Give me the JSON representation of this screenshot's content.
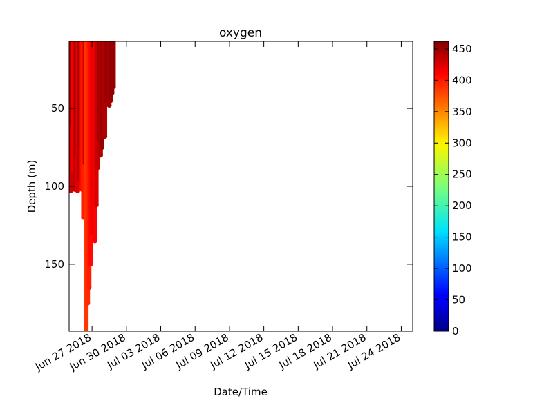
{
  "chart_data": {
    "type": "scatter",
    "title": "oxygen",
    "xlabel": "Date/Time",
    "ylabel": "Depth (m)",
    "x_range": [
      "2018-06-25",
      "2018-07-25"
    ],
    "y_range": [
      7,
      193
    ],
    "y_inverted": true,
    "x_ticks": [
      "Jun 27 2018",
      "Jun 30 2018",
      "Jul 03 2018",
      "Jul 06 2018",
      "Jul 09 2018",
      "Jul 12 2018",
      "Jul 15 2018",
      "Jul 18 2018",
      "Jul 21 2018",
      "Jul 24 2018"
    ],
    "x_tick_dates": [
      "2018-06-27",
      "2018-06-30",
      "2018-07-03",
      "2018-07-06",
      "2018-07-09",
      "2018-07-12",
      "2018-07-15",
      "2018-07-18",
      "2018-07-21",
      "2018-07-24"
    ],
    "y_ticks": [
      50,
      100,
      150
    ],
    "colorbar": {
      "colormap": "jet",
      "min": 0,
      "max": 462,
      "ticks": [
        0,
        50,
        100,
        150,
        200,
        250,
        300,
        350,
        400,
        450
      ]
    },
    "profiles": [
      {
        "date": "2018-06-25T00:00",
        "max_depth": 97,
        "oxygen": 415
      },
      {
        "date": "2018-06-25T03:00",
        "max_depth": 103,
        "oxygen": 425
      },
      {
        "date": "2018-06-25T06:00",
        "max_depth": 60,
        "oxygen": 440
      },
      {
        "date": "2018-06-25T09:00",
        "max_depth": 90,
        "oxygen": 410
      },
      {
        "date": "2018-06-25T12:00",
        "max_depth": 102,
        "oxygen": 430
      },
      {
        "date": "2018-06-25T15:00",
        "max_depth": 80,
        "oxygen": 445
      },
      {
        "date": "2018-06-25T18:00",
        "max_depth": 103,
        "oxygen": 420
      },
      {
        "date": "2018-06-25T21:00",
        "max_depth": 95,
        "oxygen": 435
      },
      {
        "date": "2018-06-26T00:00",
        "max_depth": 75,
        "oxygen": 445
      },
      {
        "date": "2018-06-26T03:00",
        "max_depth": 102,
        "oxygen": 400
      },
      {
        "date": "2018-06-26T06:00",
        "max_depth": 120,
        "oxygen": 390
      },
      {
        "date": "2018-06-26T09:00",
        "max_depth": 85,
        "oxygen": 430
      },
      {
        "date": "2018-06-26T12:00",
        "max_depth": 193,
        "oxygen": 380
      },
      {
        "date": "2018-06-26T15:00",
        "max_depth": 175,
        "oxygen": 385
      },
      {
        "date": "2018-06-26T18:00",
        "max_depth": 165,
        "oxygen": 390
      },
      {
        "date": "2018-06-26T21:00",
        "max_depth": 150,
        "oxygen": 400
      },
      {
        "date": "2018-06-27T00:00",
        "max_depth": 130,
        "oxygen": 410
      },
      {
        "date": "2018-06-27T03:00",
        "max_depth": 110,
        "oxygen": 415
      },
      {
        "date": "2018-06-27T06:00",
        "max_depth": 135,
        "oxygen": 405
      },
      {
        "date": "2018-06-27T09:00",
        "max_depth": 112,
        "oxygen": 420
      },
      {
        "date": "2018-06-27T12:00",
        "max_depth": 88,
        "oxygen": 430
      },
      {
        "date": "2018-06-27T15:00",
        "max_depth": 70,
        "oxygen": 445
      },
      {
        "date": "2018-06-27T18:00",
        "max_depth": 80,
        "oxygen": 440
      },
      {
        "date": "2018-06-27T21:00",
        "max_depth": 75,
        "oxygen": 450
      },
      {
        "date": "2018-06-28T00:00",
        "max_depth": 55,
        "oxygen": 445
      },
      {
        "date": "2018-06-28T03:00",
        "max_depth": 68,
        "oxygen": 440
      },
      {
        "date": "2018-06-28T06:00",
        "max_depth": 45,
        "oxygen": 450
      },
      {
        "date": "2018-06-28T09:00",
        "max_depth": 40,
        "oxygen": 455
      },
      {
        "date": "2018-06-28T12:00",
        "max_depth": 48,
        "oxygen": 445
      },
      {
        "date": "2018-06-28T15:00",
        "max_depth": 45,
        "oxygen": 450
      },
      {
        "date": "2018-06-28T18:00",
        "max_depth": 40,
        "oxygen": 455
      },
      {
        "date": "2018-06-28T21:00",
        "max_depth": 36,
        "oxygen": 452
      }
    ]
  }
}
